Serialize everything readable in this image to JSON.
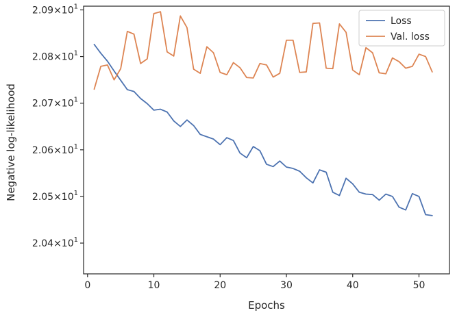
{
  "chart_data": {
    "type": "line",
    "title": "",
    "xlabel": "Epochs",
    "ylabel": "Negative log-likelihood",
    "xlim": [
      -0.6,
      54.6
    ],
    "ylim": [
      20.334,
      20.908
    ],
    "grid": false,
    "legend_position": "top-right",
    "x_ticks": [
      {
        "value": 0,
        "label": "0"
      },
      {
        "value": 10,
        "label": "10"
      },
      {
        "value": 20,
        "label": "20"
      },
      {
        "value": 30,
        "label": "30"
      },
      {
        "value": 40,
        "label": "40"
      },
      {
        "value": 50,
        "label": "50"
      }
    ],
    "y_ticks": [
      {
        "value": 20.4,
        "mantissa": "2.04",
        "exponent": "1"
      },
      {
        "value": 20.5,
        "mantissa": "2.05",
        "exponent": "1"
      },
      {
        "value": 20.6,
        "mantissa": "2.06",
        "exponent": "1"
      },
      {
        "value": 20.7,
        "mantissa": "2.07",
        "exponent": "1"
      },
      {
        "value": 20.8,
        "mantissa": "2.08",
        "exponent": "1"
      },
      {
        "value": 20.9,
        "mantissa": "2.09",
        "exponent": "1"
      }
    ],
    "x": [
      1,
      2,
      3,
      4,
      5,
      6,
      7,
      8,
      9,
      10,
      11,
      12,
      13,
      14,
      15,
      16,
      17,
      18,
      19,
      20,
      21,
      22,
      23,
      24,
      25,
      26,
      27,
      28,
      29,
      30,
      31,
      32,
      33,
      34,
      35,
      36,
      37,
      38,
      39,
      40,
      41,
      42,
      43,
      44,
      45,
      46,
      47,
      48,
      49,
      50,
      51,
      52
    ],
    "series": [
      {
        "name": "Loss",
        "color": "#4c72b0",
        "values": [
          20.826,
          20.807,
          20.79,
          20.769,
          20.749,
          20.729,
          20.725,
          20.71,
          20.699,
          20.685,
          20.687,
          20.681,
          20.662,
          20.65,
          20.664,
          20.652,
          20.633,
          20.628,
          20.623,
          20.611,
          20.626,
          20.62,
          20.593,
          20.583,
          20.607,
          20.598,
          20.569,
          20.564,
          20.576,
          20.563,
          20.56,
          20.554,
          20.54,
          20.529,
          20.557,
          20.552,
          20.509,
          20.502,
          20.539,
          20.527,
          20.509,
          20.505,
          20.504,
          20.492,
          20.505,
          20.5,
          20.477,
          20.471,
          20.506,
          20.5,
          20.461,
          20.459
        ]
      },
      {
        "name": "Val. loss",
        "color": "#dd8452",
        "values": [
          20.73,
          20.779,
          20.782,
          20.75,
          20.774,
          20.854,
          20.848,
          20.785,
          20.795,
          20.892,
          20.896,
          20.81,
          20.801,
          20.887,
          20.862,
          20.773,
          20.764,
          20.821,
          20.808,
          20.766,
          20.761,
          20.787,
          20.776,
          20.755,
          20.754,
          20.785,
          20.782,
          20.756,
          20.764,
          20.835,
          20.835,
          20.766,
          20.767,
          20.871,
          20.872,
          20.775,
          20.774,
          20.87,
          20.852,
          20.771,
          20.761,
          20.819,
          20.808,
          20.765,
          20.763,
          20.797,
          20.789,
          20.775,
          20.779,
          20.805,
          20.8,
          20.767
        ]
      }
    ]
  }
}
